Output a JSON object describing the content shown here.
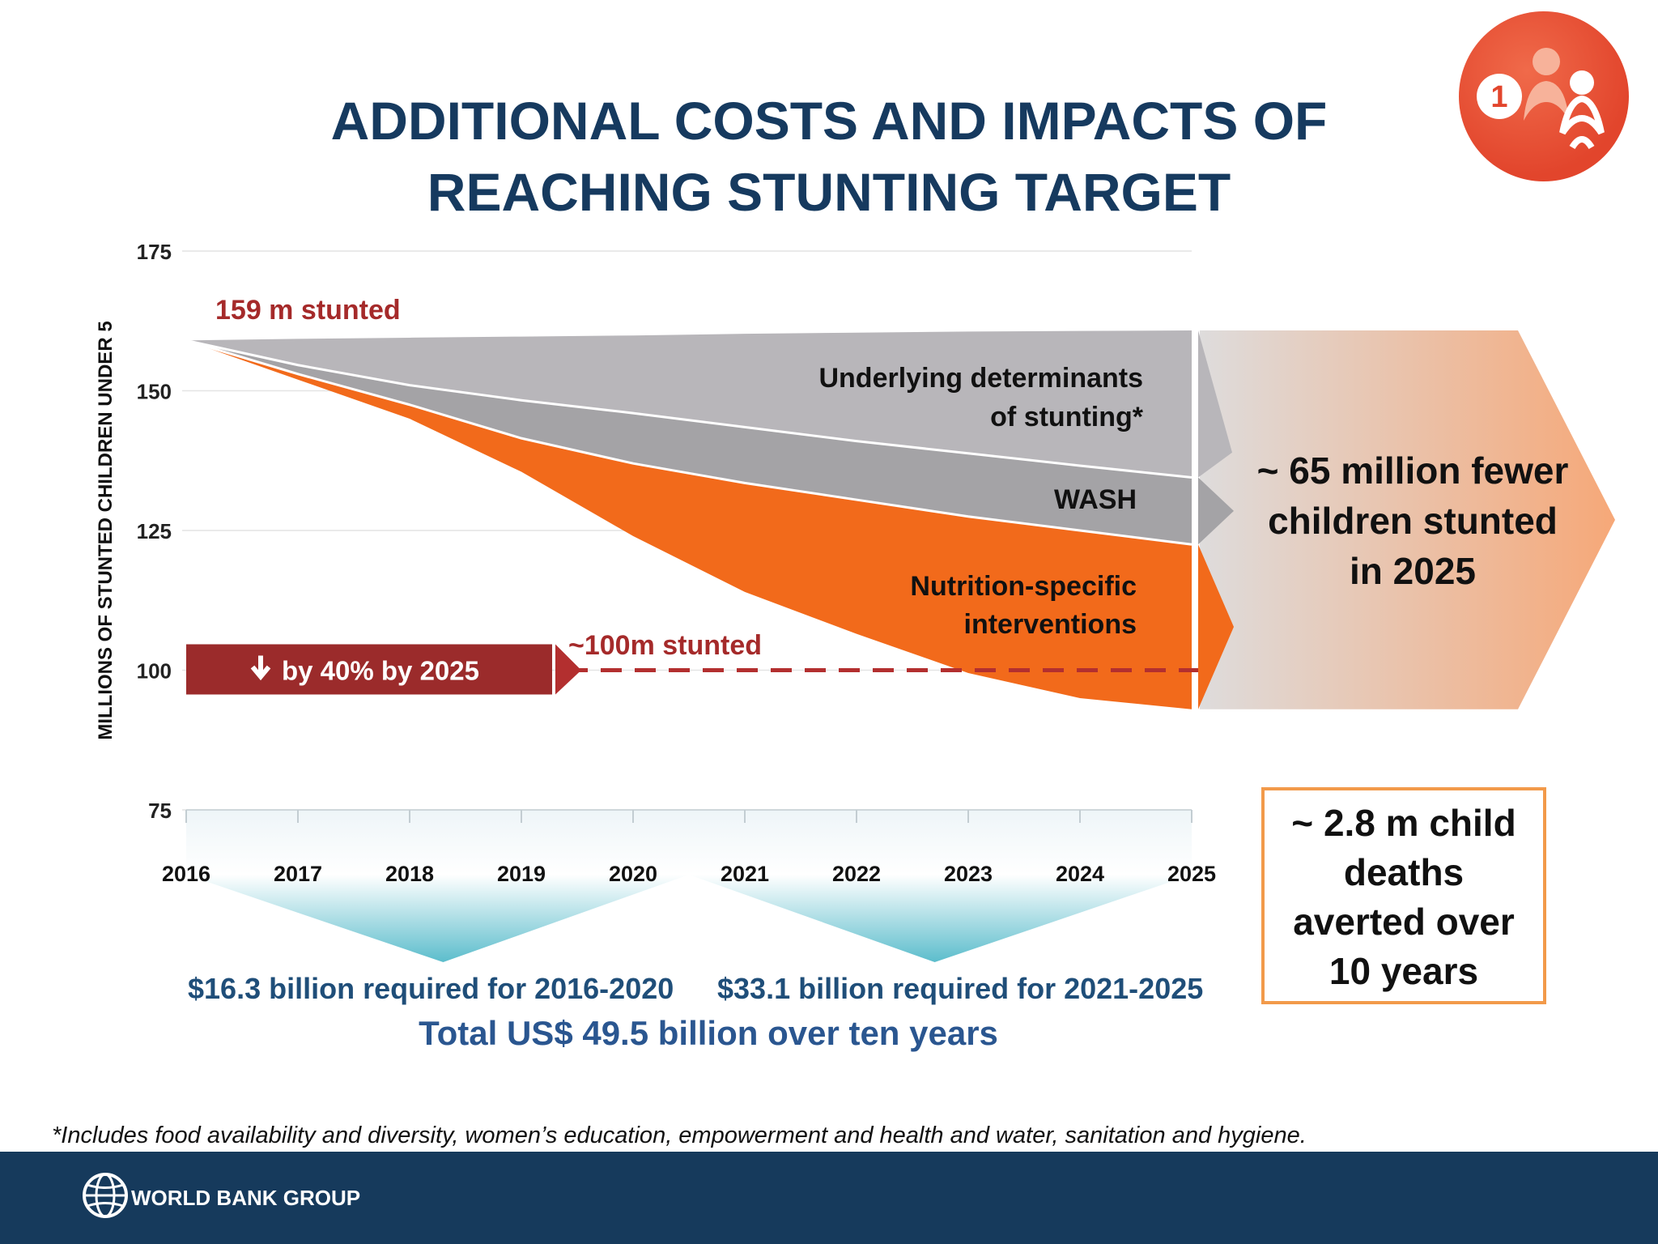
{
  "title": {
    "line1": "ADDITIONAL COSTS AND IMPACTS OF",
    "line2": "REACHING  STUNTING TARGET"
  },
  "badge": {
    "number": "1",
    "icon": "mother-child-icon"
  },
  "chart_data": {
    "type": "area",
    "title": "ADDITIONAL COSTS AND IMPACTS OF REACHING STUNTING TARGET",
    "xlabel": "",
    "ylabel": "MILLIONS OF STUNTED CHILDREN UNDER 5",
    "ylim": [
      75,
      175
    ],
    "yticks": [
      175,
      150,
      125,
      100,
      75
    ],
    "x": [
      2016,
      2017,
      2018,
      2019,
      2020,
      2021,
      2022,
      2023,
      2024,
      2025
    ],
    "grid": true,
    "series": [
      {
        "name": "Underlying determinants of stunting*",
        "color": "#b8b6ba",
        "values": [
          159,
          159.3,
          159.5,
          159.7,
          159.9,
          160.2,
          160.4,
          160.6,
          160.7,
          160.8
        ]
      },
      {
        "name": "WASH",
        "color": "#a4a3a6",
        "values": [
          159,
          154.6,
          151,
          148.3,
          146,
          143.5,
          141,
          138.8,
          136.6,
          134.5
        ]
      },
      {
        "name": "Nutrition-specific interventions",
        "color": "#f26a1b",
        "values": [
          159,
          153,
          147.5,
          141.5,
          137,
          133.5,
          130.5,
          127.5,
          125,
          122.5
        ]
      },
      {
        "name": "Target trajectory",
        "color": "#f26a1b",
        "values": [
          159,
          152,
          145,
          135.5,
          124,
          114,
          106.5,
          99.5,
          95,
          93
        ]
      }
    ],
    "labels": {
      "start": "159 m stunted",
      "target_value": "~100m stunted",
      "target_arrow": "by 40% by 2025",
      "underlying_line1": "Underlying determinants",
      "underlying_line2": "of stunting*",
      "wash": "WASH",
      "nutrition_line1": "Nutrition-specific",
      "nutrition_line2": "interventions"
    },
    "target_level": 100
  },
  "impact": {
    "fewer_line1": "~ 65 million fewer",
    "fewer_line2": "children stunted",
    "fewer_line3": "in 2025",
    "deaths_line1": "~ 2.8 m child",
    "deaths_line2": "deaths",
    "deaths_line3": "averted over",
    "deaths_line4": "10 years"
  },
  "costs": {
    "period1": "$16.3 billion required for 2016-2020",
    "period2": "$33.1 billion required for 2021-2025",
    "total": "Total US$ 49.5 billion over ten years"
  },
  "footnote": "*Includes food availability and diversity, women’s education, empowerment  and health and water, sanitation and hygiene.",
  "footer": {
    "org": "WORLD BANK GROUP"
  },
  "colors": {
    "title": "#163a5f",
    "orange": "#f26a1b",
    "gray_light": "#b8b6ba",
    "gray_dark": "#a4a3a6",
    "maroon": "#9b2b2b",
    "footer": "#163a5c"
  }
}
